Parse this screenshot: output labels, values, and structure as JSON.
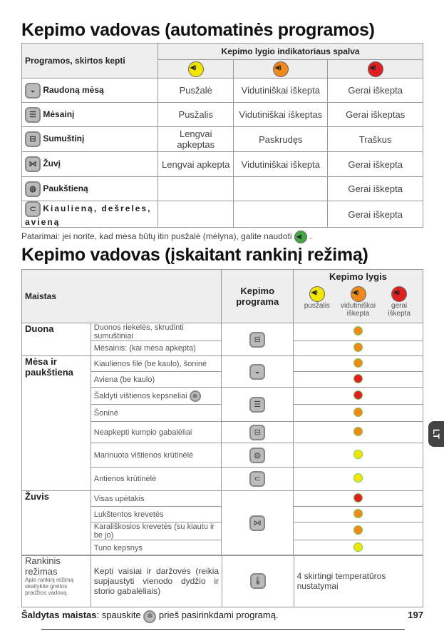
{
  "title1": "Kepimo vadovas (automatinės programos)",
  "t1": {
    "col1": "Programos, skirtos kepti",
    "col2": "Kepimo lygio indikatoriaus spalva",
    "level_colors": [
      "#f2e600",
      "#f08a1c",
      "#e02020"
    ],
    "rows": [
      {
        "icon": "steak-icon",
        "name": "Raudoną mėsą",
        "v": [
          "Pusžalė",
          "Vidutiniškai iškepta",
          "Gerai iškepta"
        ]
      },
      {
        "icon": "burger-icon",
        "name": "Mėsainį",
        "v": [
          "Pusžalis",
          "Vidutiniškai iškeptas",
          "Gerai iškeptas"
        ]
      },
      {
        "icon": "sandwich-icon",
        "name": "Sumuštinį",
        "v": [
          "Lengvai apkeptas",
          "Paskrudęs",
          "Traškus"
        ]
      },
      {
        "icon": "fish-icon",
        "name": "Žuvį",
        "v": [
          "Lengvai apkepta",
          "Vidutiniškai iškepta",
          "Gerai iškepta"
        ]
      },
      {
        "icon": "poultry-icon",
        "name": "Paukštieną",
        "v": [
          "",
          "",
          "Gerai iškepta"
        ]
      },
      {
        "icon": "sausage-icon",
        "name": "Kiaulieną, dešreles, avieną",
        "v": [
          "",
          "",
          "Gerai iškepta"
        ]
      }
    ]
  },
  "tip": "Patarimai: jei norite, kad mėsa būtų itin pusžalė (mėlyna), galite naudoti",
  "title2": "Kepimo vadovas (įskaitant rankinį režimą)",
  "t2": {
    "col_food": "Maistas",
    "col_prog": "Kepimo programa",
    "col_level": "Kepimo lygis",
    "levels": [
      "pusžalis",
      "vidutiniškai iškepta",
      "gerai iškepta"
    ],
    "groups": [
      {
        "name": "Duona",
        "items": [
          {
            "text": "Duonos riekelės, skrudinti sumuštiniai",
            "level": "#f08a1c"
          },
          {
            "text": "Mėsainis: (kai mėsa apkepta)",
            "level": "#f08a1c"
          }
        ],
        "progs": [
          {
            "icon": "sandwich-icon",
            "span": 2
          }
        ]
      },
      {
        "name": "Mėsa ir paukštiena",
        "items": [
          {
            "text": "Kiaulienos filė (be kaulo), šoninė",
            "level": "#f08a1c"
          },
          {
            "text": "Aviena (be kaulo)",
            "level": "#e02020"
          },
          {
            "text": "Šaldyti vištienos kepsneliai",
            "level": "#e02020",
            "frozen": true
          },
          {
            "text": "Šoninė",
            "level": "#f08a1c"
          },
          {
            "text": "Neapkepti kumpio gabalėliai",
            "level": "#f08a1c"
          },
          {
            "text": "Marinuota vištienos krūtinėlė",
            "level": "#f2e600"
          },
          {
            "text": "Antienos krūtinėlė",
            "level": "#f2e600"
          }
        ],
        "progs": [
          {
            "icon": "steak-icon",
            "span": 2
          },
          {
            "icon": "burger-icon",
            "span": 2
          },
          {
            "icon": "sandwich-icon",
            "span": 1
          },
          {
            "icon": "poultry-icon",
            "span": 1
          },
          {
            "icon": "sausage-icon",
            "span": 1
          }
        ]
      },
      {
        "name": "Žuvis",
        "items": [
          {
            "text": "Visas upėtakis",
            "level": "#e02020"
          },
          {
            "text": "Lukštentos krevetės",
            "level": "#f08a1c"
          },
          {
            "text": "Karališkosios krevetės (su kiautu ir be jo)",
            "level": "#f08a1c"
          },
          {
            "text": "Tuno kepsnys",
            "level": "#f2e600"
          }
        ],
        "progs": [
          {
            "icon": "fish-icon",
            "span": 4
          }
        ]
      }
    ]
  },
  "manual": {
    "title": "Rankinis režimas",
    "note": "Apie rankinį režimą skaitykite greitos pradžios vadovą.",
    "food": "Kepti vaisiai ir daržovės (reikia supjaustyti vienodo dydžio ir storio gabalėliais)",
    "icon": "thermometer-icon",
    "level": "4 skirtingi temperatūros nustatymai"
  },
  "footer": {
    "bold": "Šaldytas maistas",
    "text1": ": spauskite",
    "text2": "prieš pasirinkdami programą.",
    "page": "197"
  },
  "side_tab": "LT"
}
